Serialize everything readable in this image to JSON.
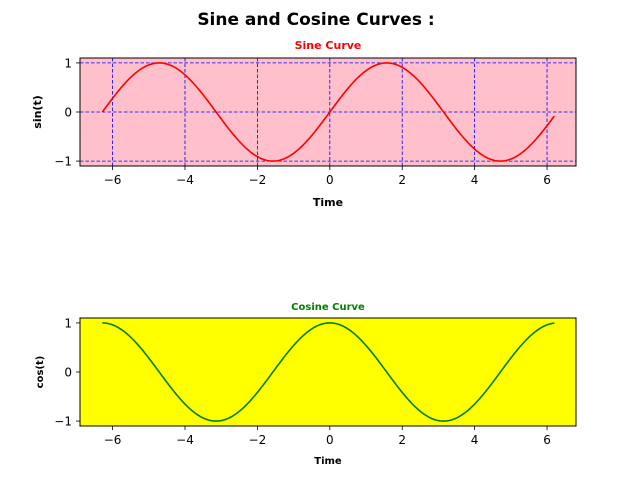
{
  "figure_title": "Sine and Cosine Curves :",
  "chart_data": [
    {
      "type": "line",
      "title": "Sine Curve",
      "title_color": "#ff0000",
      "xlabel": "Time",
      "ylabel": "sin(t)",
      "xlim": [
        -6.9,
        6.8
      ],
      "ylim": [
        -1.1,
        1.1
      ],
      "xticks": [
        -6,
        -4,
        -2,
        0,
        2,
        4,
        6
      ],
      "yticks": [
        -1,
        0,
        1
      ],
      "background": "#ffc0cb",
      "grid": true,
      "grid_color": "#0000ff",
      "function": "sin",
      "x_range": [
        -6.2832,
        6.2
      ],
      "series": [
        {
          "color": "#ff0000"
        }
      ]
    },
    {
      "type": "line",
      "title": "Cosine Curve",
      "title_color": "#008000",
      "xlabel": "Time",
      "ylabel": "cos(t)",
      "xlim": [
        -6.9,
        6.8
      ],
      "ylim": [
        -1.1,
        1.1
      ],
      "xticks": [
        -6,
        -4,
        -2,
        0,
        2,
        4,
        6
      ],
      "yticks": [
        -1,
        0,
        1
      ],
      "background": "#ffff00",
      "grid": false,
      "function": "cos",
      "x_range": [
        -6.2832,
        6.2
      ],
      "series": [
        {
          "color": "#008000"
        }
      ]
    }
  ]
}
